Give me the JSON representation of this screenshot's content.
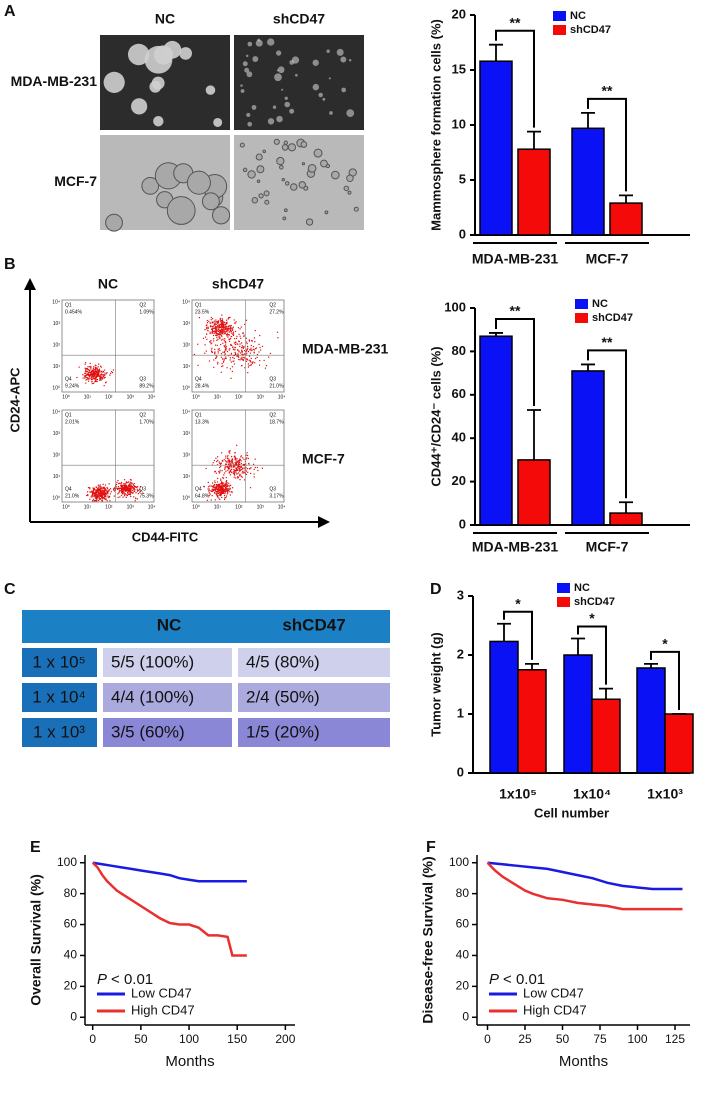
{
  "panels": [
    "A",
    "B",
    "C",
    "D",
    "E",
    "F"
  ],
  "images": {
    "columns": [
      "NC",
      "shCD47"
    ],
    "rows": [
      "MDA-MB-231",
      "MCF-7"
    ]
  },
  "flow": {
    "columns": [
      "NC",
      "shCD47"
    ],
    "rows": [
      "MDA-MB-231",
      "MCF-7"
    ],
    "y_axis": "CD24-APC",
    "x_axis": "CD44-FITC",
    "quadrants": [
      "Q1",
      "Q2",
      "Q3",
      "Q4"
    ],
    "log_ticks": [
      "10⁰",
      "10¹",
      "10²",
      "10³",
      "10⁴"
    ],
    "plots": [
      {
        "percent": [
          "0.454%",
          "1.09%",
          "89.2%",
          "9.24%"
        ]
      },
      {
        "percent": [
          "23.5%",
          "27.2%",
          "21.0%",
          "28.4%"
        ]
      },
      {
        "percent": [
          "2.01%",
          "1.70%",
          "75.3%",
          "21.0%"
        ]
      },
      {
        "percent": [
          "13.3%",
          "18.7%",
          "3.17%",
          "64.8%"
        ]
      }
    ]
  },
  "table": {
    "header": [
      "NC",
      "shCD47"
    ],
    "rows": [
      [
        "1 x 10⁵",
        "5/5 (100%)",
        "4/5 (80%)"
      ],
      [
        "1 x 10⁴",
        "4/4 (100%)",
        "2/4 (50%)"
      ],
      [
        "1 x 10³",
        "3/5 (60%)",
        "1/5 (20%)"
      ]
    ]
  },
  "chart_data": [
    {
      "type": "bar",
      "ylabel": "Mammosphere formation cells (%)",
      "categories": [
        "MDA-MB-231",
        "MCF-7"
      ],
      "series": [
        {
          "name": "NC",
          "color": "#0a12f5",
          "values": [
            15.8,
            9.7
          ],
          "errors": [
            1.5,
            1.4
          ]
        },
        {
          "name": "shCD47",
          "color": "#f50a0a",
          "values": [
            7.8,
            2.9
          ],
          "errors": [
            1.6,
            0.7
          ]
        }
      ],
      "significance": [
        "**",
        "**"
      ],
      "ylim": [
        0,
        20
      ],
      "yticks": [
        0,
        5,
        10,
        15,
        20
      ],
      "legend": "top-right"
    },
    {
      "type": "bar",
      "ylabel": "CD44⁺/CD24⁻ cells (%)",
      "categories": [
        "MDA-MB-231",
        "MCF-7"
      ],
      "series": [
        {
          "name": "NC",
          "color": "#0a12f5",
          "values": [
            87,
            71
          ],
          "errors": [
            1.5,
            3
          ]
        },
        {
          "name": "shCD47",
          "color": "#f50a0a",
          "values": [
            30,
            5.5
          ],
          "errors": [
            23,
            5
          ]
        }
      ],
      "significance": [
        "**",
        "**"
      ],
      "ylim": [
        0,
        100
      ],
      "yticks": [
        0,
        20,
        40,
        60,
        80,
        100
      ],
      "legend": "top-right"
    },
    {
      "type": "bar",
      "ylabel": "Tumor weight (g)",
      "xlabel": "Cell number",
      "categories": [
        "1x10⁵",
        "1x10⁴",
        "1x10³"
      ],
      "series": [
        {
          "name": "NC",
          "color": "#0a12f5",
          "values": [
            2.23,
            2.0,
            1.78
          ],
          "errors": [
            0.3,
            0.28,
            0.07
          ]
        },
        {
          "name": "shCD47",
          "color": "#f50a0a",
          "values": [
            1.75,
            1.25,
            1.0
          ],
          "errors": [
            0.1,
            0.18,
            0
          ]
        }
      ],
      "significance": [
        "*",
        "*",
        "*"
      ],
      "ylim": [
        0,
        3
      ],
      "yticks": [
        0,
        1,
        2,
        3
      ],
      "legend": "top-right"
    },
    {
      "type": "line",
      "ylabel": "Overall Survival (%)",
      "xlabel": "Months",
      "xlim": [
        -8,
        210
      ],
      "xticks": [
        0,
        50,
        100,
        150,
        200
      ],
      "ylim": [
        -5,
        105
      ],
      "yticks": [
        0,
        20,
        40,
        60,
        80,
        100
      ],
      "annotation": {
        "italic": "P",
        "text": "< 0.01"
      },
      "legend": "bottom-left",
      "series": [
        {
          "name": "Low CD47",
          "color": "#1a1ae0",
          "x": [
            0,
            10,
            20,
            30,
            40,
            50,
            60,
            70,
            80,
            90,
            100,
            110,
            120,
            130,
            140,
            150,
            160
          ],
          "values": [
            100,
            99,
            98,
            97,
            96,
            95,
            94,
            93,
            92,
            90,
            89,
            88,
            88,
            88,
            88,
            88,
            88
          ]
        },
        {
          "name": "High CD47",
          "color": "#e83030",
          "x": [
            0,
            5,
            10,
            15,
            20,
            25,
            30,
            40,
            50,
            60,
            70,
            80,
            90,
            100,
            110,
            120,
            130,
            140,
            145,
            150,
            160
          ],
          "values": [
            100,
            97,
            92,
            88,
            85,
            82,
            80,
            76,
            72,
            68,
            64,
            61,
            60,
            60,
            58,
            53,
            53,
            52,
            40,
            40,
            40
          ]
        }
      ]
    },
    {
      "type": "line",
      "ylabel": "Disease-free Survival (%)",
      "xlabel": "Months",
      "xlim": [
        -7,
        135
      ],
      "xticks": [
        0,
        25,
        50,
        75,
        100,
        125
      ],
      "ylim": [
        -5,
        105
      ],
      "yticks": [
        0,
        20,
        40,
        60,
        80,
        100
      ],
      "annotation": {
        "italic": "P",
        "text": "< 0.01"
      },
      "legend": "bottom-left",
      "series": [
        {
          "name": "Low CD47",
          "color": "#1a1ae0",
          "x": [
            0,
            10,
            20,
            30,
            40,
            50,
            60,
            70,
            80,
            90,
            100,
            110,
            120,
            130
          ],
          "values": [
            100,
            99,
            98,
            97,
            96,
            94,
            92,
            90,
            87,
            85,
            84,
            83,
            83,
            83
          ]
        },
        {
          "name": "High CD47",
          "color": "#e83030",
          "x": [
            0,
            5,
            10,
            15,
            20,
            25,
            30,
            40,
            50,
            60,
            70,
            80,
            90,
            100,
            110,
            120,
            130
          ],
          "values": [
            100,
            95,
            91,
            88,
            85,
            82,
            80,
            77,
            76,
            74,
            73,
            72,
            70,
            70,
            70,
            70,
            70
          ]
        }
      ]
    }
  ]
}
